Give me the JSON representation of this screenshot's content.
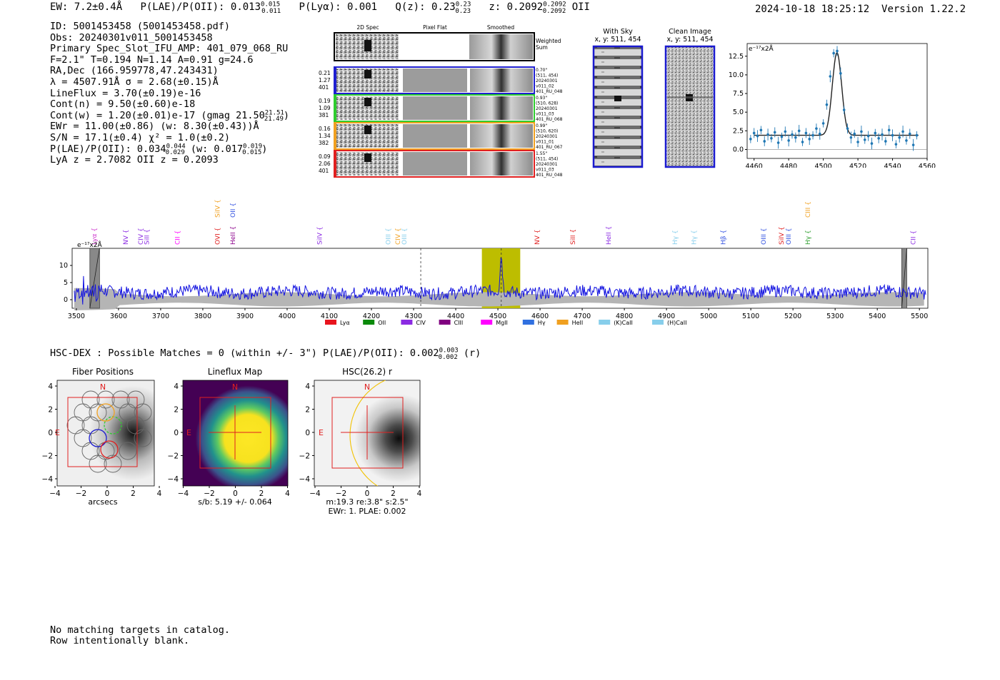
{
  "header": {
    "ew_label": "EW: 7.2±0.4Å",
    "plae_label": "P(LAE)/P(OII): 0.013",
    "plae_sup": "0.015",
    "plae_sub": "0.011",
    "plya_label": "P(Lyα): 0.001",
    "qz_label": "Q(z): 0.23",
    "qz_sup": "0.23",
    "qz_sub": "0.23",
    "z_label": "z: 0.2092",
    "z_sup": "0.2092",
    "z_sub": "0.2092",
    "z_line": "OII",
    "timestamp": "2024-10-18 18:25:12",
    "version": "Version 1.22.2"
  },
  "info": {
    "id": "ID: 5001453458 (5001453458.pdf)",
    "obs": "Obs: 20240301v011_5001453458",
    "primary": "Primary Spec_Slot_IFU_AMP: 401_079_068_RU",
    "fit": "F=2.1\"  T=0.194  N=1.14  A=0.91  g=24.6",
    "radec": "RA,Dec (166.959778,47.243431)",
    "lambda_sigma": "λ = 4507.91Å   σ = 2.68(±0.15)Å",
    "lineflux": "LineFlux = 3.70(±0.19)e-16",
    "contn": "Cont(n) = 9.50(±0.60)e-18",
    "contw": "Cont(w) = 1.20(±0.01)e-17 (gmag 21.50",
    "gmag_sup": "21.51",
    "gmag_sub": "21.49",
    "contw_close": ")",
    "ewr": "EWr = 11.00(±0.86) (w: 8.30(±0.43))Å",
    "sn": "S/N = 17.1(±0.4)  χ² = 1.0(±0.2)",
    "plae2": "P(LAE)/P(OII): 0.034",
    "plae2_sup": "0.044",
    "plae2_sub": "0.029",
    "plae2_w": "(w: 0.017",
    "plae2_w_sup": "0.019",
    "plae2_w_sub": "0.015",
    "plae2_close": ")",
    "lya_z": "LyA z = 2.7082  OII z = 0.2093"
  },
  "cutouts": {
    "headers": [
      "2D Spec",
      "Pixel Flat",
      "Smoothed"
    ],
    "weighted_sum_label": "Weighted\nSum",
    "rows": [
      {
        "left": [
          "0.21",
          "1.27",
          "401"
        ],
        "right": [
          "0.70\"",
          "(511, 454)",
          "20240301",
          "v011_02",
          "401_RU_048"
        ],
        "color": "#1f1fd0"
      },
      {
        "left": [
          "0.19",
          "1.09",
          "381"
        ],
        "right": [
          "0.93\"",
          "(510, 628)",
          "20240301",
          "v011_03",
          "401_RU_068"
        ],
        "color": "#2ecc2e"
      },
      {
        "left": [
          "0.16",
          "1.34",
          "382"
        ],
        "right": [
          "0.99\"",
          "(510, 620)",
          "20240301",
          "v011_01",
          "401_RU_067"
        ],
        "color": "#f0a020"
      },
      {
        "left": [
          "0.09",
          "2.06",
          "401"
        ],
        "right": [
          "1.55\"",
          "(511, 454)",
          "20240301",
          "v011_03",
          "401_RU_048"
        ],
        "color": "#e02020"
      }
    ]
  },
  "sky_panels": {
    "with_sky_title": "With Sky",
    "with_sky_coords": "x, y: 511, 454",
    "clean_title": "Clean Image",
    "clean_coords": "x, y: 511, 454"
  },
  "chart_data": [
    {
      "type": "scatter",
      "title": "",
      "ylabel": "e⁻¹⁷x2Å",
      "xlim": [
        4456,
        4560
      ],
      "ylim": [
        -1.2,
        14.2
      ],
      "xticks": [
        4460,
        4480,
        4500,
        4520,
        4540,
        4560
      ],
      "yticks": [
        0.0,
        2.5,
        5.0,
        7.5,
        10.0,
        12.5
      ],
      "model": {
        "center": 4507.91,
        "sigma": 2.68,
        "amplitude": 11.1,
        "continuum": 1.9
      },
      "x": [
        4458,
        4460,
        4462,
        4464,
        4466,
        4468,
        4470,
        4472,
        4474,
        4476,
        4478,
        4480,
        4482,
        4484,
        4486,
        4488,
        4490,
        4492,
        4494,
        4496,
        4498,
        4500,
        4502,
        4504,
        4506,
        4508,
        4510,
        4512,
        4514,
        4516,
        4518,
        4520,
        4522,
        4524,
        4526,
        4528,
        4530,
        4532,
        4534,
        4536,
        4538,
        4540,
        4542,
        4544,
        4546,
        4548,
        4550,
        4552,
        4554
      ],
      "y": [
        1.4,
        2.2,
        1.8,
        2.6,
        1.1,
        2.0,
        1.5,
        2.3,
        0.9,
        1.7,
        2.4,
        1.2,
        2.0,
        1.6,
        2.5,
        1.0,
        2.2,
        1.4,
        1.9,
        2.8,
        2.1,
        3.5,
        6.0,
        9.8,
        12.9,
        13.2,
        10.2,
        5.3,
        2.8,
        1.6,
        2.1,
        1.0,
        2.4,
        1.3,
        1.8,
        0.8,
        2.2,
        1.5,
        2.0,
        1.1,
        2.6,
        1.9,
        0.7,
        1.6,
        2.4,
        1.2,
        2.1,
        0.6,
        1.9
      ]
    },
    {
      "type": "line",
      "title": "",
      "ylabel": "e⁻¹⁷x2Å",
      "xlim": [
        3490,
        5520
      ],
      "ylim": [
        -2.5,
        15
      ],
      "xticks": [
        3500,
        3600,
        3700,
        3800,
        3900,
        4000,
        4100,
        4200,
        4300,
        4400,
        4500,
        4600,
        4700,
        4800,
        4900,
        5000,
        5100,
        5200,
        5300,
        5400,
        5500
      ],
      "yticks": [
        0,
        5,
        10
      ],
      "highlight_band": [
        4462,
        4553
      ],
      "masked_bands": [
        [
          3532,
          3555
        ],
        [
          5458,
          5470
        ]
      ],
      "dashed_lines": [
        4317,
        4508
      ],
      "peak": {
        "wavelength": 4508,
        "flux": 12.8
      },
      "line_labels": [
        {
          "name": "Lyα",
          "wave": 3548,
          "color": "#cc33cc",
          "row": "low"
        },
        {
          "name": "NV",
          "wave": 3622,
          "color": "#8b2be2",
          "row": "low"
        },
        {
          "name": "SiII",
          "wave": 3672,
          "color": "#8b2be2",
          "row": "low"
        },
        {
          "name": "CIV",
          "wave": 3658,
          "color": "#8b2be2",
          "row": "low"
        },
        {
          "name": "CII",
          "wave": 3745,
          "color": "#ff00ff",
          "row": "low"
        },
        {
          "name": "SiIV",
          "wave": 3840,
          "color": "#f0a020",
          "row": "high"
        },
        {
          "name": "OVI",
          "wave": 3840,
          "color": "#e02020",
          "row": "low"
        },
        {
          "name": "OII",
          "wave": 3876,
          "color": "#3050e0",
          "row": "high"
        },
        {
          "name": "HeII",
          "wave": 3876,
          "color": "#8b008b",
          "row": "low"
        },
        {
          "name": "SiIV",
          "wave": 4082,
          "color": "#8b2be2",
          "row": "low"
        },
        {
          "name": "OIII",
          "wave": 4245,
          "color": "#87ceeb",
          "row": "low"
        },
        {
          "name": "CIV",
          "wave": 4268,
          "color": "#f0a020",
          "row": "low"
        },
        {
          "name": "OIII",
          "wave": 4283,
          "color": "#87ceeb",
          "row": "low"
        },
        {
          "name": "NV",
          "wave": 4598,
          "color": "#e02020",
          "row": "low"
        },
        {
          "name": "SiII",
          "wave": 4683,
          "color": "#e02020",
          "row": "low"
        },
        {
          "name": "HeII",
          "wave": 4768,
          "color": "#8b2be2",
          "row": "low"
        },
        {
          "name": "Hγ",
          "wave": 4925,
          "color": "#87ceeb",
          "row": "low"
        },
        {
          "name": "Hγ",
          "wave": 4970,
          "color": "#87ceeb",
          "row": "low"
        },
        {
          "name": "Hβ",
          "wave": 5040,
          "color": "#3050e0",
          "row": "low"
        },
        {
          "name": "OIII",
          "wave": 5135,
          "color": "#3050e0",
          "row": "low"
        },
        {
          "name": "SiIV",
          "wave": 5178,
          "color": "#e02020",
          "row": "low"
        },
        {
          "name": "OIII",
          "wave": 5195,
          "color": "#3050e0",
          "row": "low"
        },
        {
          "name": "CIII",
          "wave": 5240,
          "color": "#f0a020",
          "row": "high"
        },
        {
          "name": "Hγ",
          "wave": 5240,
          "color": "#2e9e2e",
          "row": "low"
        },
        {
          "name": "CII",
          "wave": 5490,
          "color": "#8b2be2",
          "row": "low"
        }
      ],
      "legend": [
        {
          "name": "Lyα",
          "color": "#e8141e"
        },
        {
          "name": "OII",
          "color": "#0a8a0a"
        },
        {
          "name": "CIV",
          "color": "#8b2be2"
        },
        {
          "name": "CIII",
          "color": "#800080"
        },
        {
          "name": "MgII",
          "color": "#ff00ff"
        },
        {
          "name": "Hγ",
          "color": "#3070e0"
        },
        {
          "name": "HeII",
          "color": "#f0a020"
        },
        {
          "name": "(K)CaII",
          "color": "#87ceeb"
        },
        {
          "name": "(H)CaII",
          "color": "#87ceeb"
        }
      ]
    }
  ],
  "hsc": {
    "title": "HSC-DEX : Possible Matches = 0 (within +/- 3\")  P(LAE)/P(OII): 0.002",
    "plae_sup": "0.003",
    "plae_sub": "0.002",
    "band": "(r)"
  },
  "image_panels": [
    {
      "title": "Fiber Positions",
      "xlabel": "arcsecs",
      "xticks": [
        "−4",
        "−2",
        "0",
        "2",
        "4"
      ],
      "yticks": [
        "4",
        "2",
        "0",
        "−2",
        "−4"
      ],
      "north": "N",
      "east": "E"
    },
    {
      "title": "Lineflux Map",
      "xlabel": "s/b: 5.19 +/- 0.064",
      "xticks": [
        "−4",
        "−2",
        "0",
        "2",
        "4"
      ],
      "yticks": [
        "4",
        "2",
        "0",
        "−2",
        "−4"
      ],
      "north": "N",
      "east": "E"
    },
    {
      "title": "HSC(26.2) r",
      "xlabel": "m:19.3  re:3.8\"  s:2.5\"",
      "xlabel2": "EWr: 1. PLAE: 0.002",
      "xticks": [
        "−4",
        "−2",
        "0",
        "2",
        "4"
      ],
      "yticks": [
        "4",
        "2",
        "0",
        "−2",
        "−4"
      ],
      "north": "N",
      "east": "E"
    }
  ],
  "footer": {
    "line1": "No matching targets in catalog.",
    "line2": "Row intentionally blank."
  }
}
